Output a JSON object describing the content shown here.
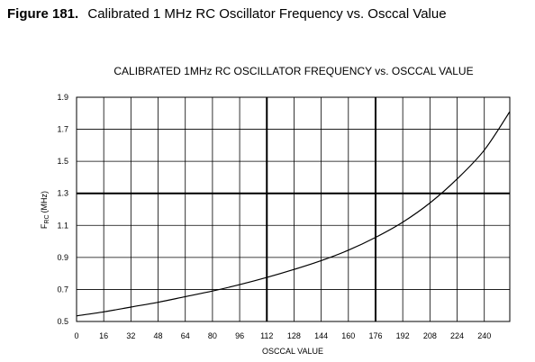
{
  "caption": {
    "figure_number": "Figure 181.",
    "title": "Calibrated 1 MHz RC Oscillator Frequency vs. Osccal Value"
  },
  "chart_data": {
    "type": "line",
    "title": "CALIBRATED 1MHz RC OSCILLATOR FREQUENCY vs. OSCCAL VALUE",
    "xlabel": "OSCCAL VALUE",
    "ylabel_main": "F",
    "ylabel_sub": "RC",
    "ylabel_unit": "(MHz)",
    "xlim": [
      0,
      255
    ],
    "ylim": [
      0.5,
      1.9
    ],
    "x_ticks": [
      0,
      16,
      32,
      48,
      64,
      80,
      96,
      112,
      128,
      144,
      160,
      176,
      192,
      208,
      224,
      240
    ],
    "y_ticks": [
      "0.5",
      "0.7",
      "0.9",
      "1.1",
      "1.3",
      "1.5",
      "1.7",
      "1.9"
    ],
    "grid": true,
    "emphasized_gridlines": {
      "x": [
        112,
        176
      ],
      "y": [
        1.3
      ]
    },
    "series": [
      {
        "x": [
          0,
          16,
          32,
          48,
          64,
          80,
          96,
          112,
          128,
          144,
          160,
          176,
          192,
          208,
          224,
          240,
          255
        ],
        "y": [
          0.535,
          0.56,
          0.59,
          0.62,
          0.655,
          0.69,
          0.73,
          0.775,
          0.825,
          0.88,
          0.945,
          1.025,
          1.12,
          1.24,
          1.39,
          1.57,
          1.81
        ]
      }
    ]
  }
}
